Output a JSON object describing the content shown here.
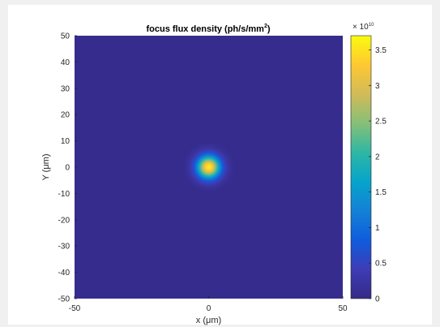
{
  "chart_data": {
    "type": "heatmap",
    "title": "focus flux density (ph/s/mm",
    "title_superscript": "2",
    "title_suffix": ")",
    "xlabel": "x (μm)",
    "ylabel": "Y (μm)",
    "xlim": [
      -50,
      50
    ],
    "ylim": [
      -50,
      50
    ],
    "x_ticks": [
      "-50",
      "0",
      "50"
    ],
    "y_ticks": [
      "50",
      "40",
      "30",
      "20",
      "10",
      "0",
      "-10",
      "-20",
      "-30",
      "-40",
      "-50"
    ],
    "colorbar": {
      "multiplier_base": "× 10",
      "multiplier_exp": "10",
      "range": [
        0,
        3.7
      ],
      "ticks": [
        "3.5",
        "3",
        "2.5",
        "2",
        "1.5",
        "1",
        "0.5",
        "0"
      ],
      "colormap": "parula"
    },
    "peak": {
      "x": 0,
      "y": 0,
      "value": 3.6
    },
    "spot_width_um": 6,
    "background_value": 0.05,
    "grid": false
  },
  "colors": {
    "figure_bg": "#f0f0f0",
    "axes_bg": "#ffffff",
    "parula": [
      "#352a87",
      "#3e3cb5",
      "#0f5cdd",
      "#1481d6",
      "#06a4ca",
      "#2eb7a4",
      "#87bf77",
      "#d1bb59",
      "#fec832",
      "#f9fb0e"
    ]
  }
}
